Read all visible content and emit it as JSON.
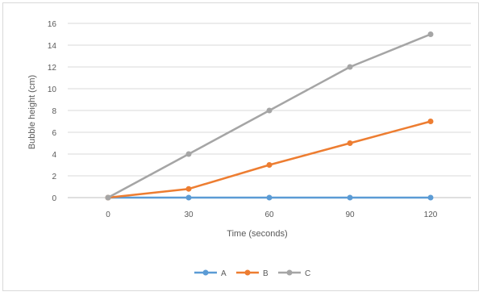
{
  "chart_data": {
    "type": "line",
    "title": "",
    "xlabel": "Time (seconds)",
    "ylabel": "Bubble height (cm)",
    "x": [
      0,
      30,
      60,
      90,
      120
    ],
    "ylim": [
      0,
      16
    ],
    "yticks": [
      0,
      2,
      4,
      6,
      8,
      10,
      12,
      14,
      16
    ],
    "grid": true,
    "legend_position": "bottom",
    "series": [
      {
        "name": "A",
        "color": "#5b9bd5",
        "values": [
          0,
          0,
          0,
          0,
          0
        ]
      },
      {
        "name": "B",
        "color": "#ed7d31",
        "values": [
          0,
          0.8,
          3,
          5,
          7
        ]
      },
      {
        "name": "C",
        "color": "#a5a5a5",
        "values": [
          0,
          4,
          8,
          12,
          15
        ]
      }
    ]
  }
}
